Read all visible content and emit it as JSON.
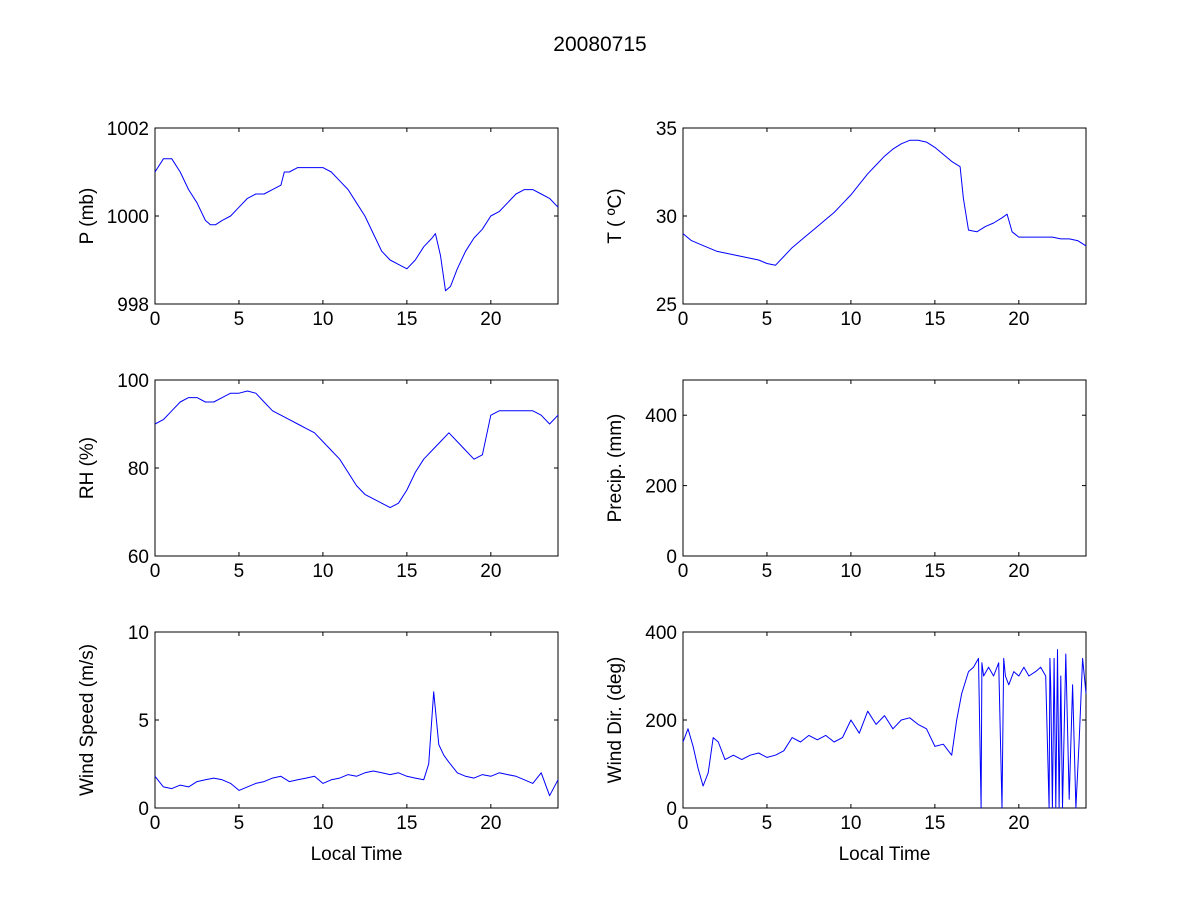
{
  "figure": {
    "title": "20080715",
    "line_color": "#0000ff",
    "background": "#ffffff"
  },
  "chart_data": [
    {
      "type": "line",
      "panel": "top-left",
      "title": "",
      "xlabel": "",
      "ylabel": "P (mb)",
      "xlim": [
        0,
        24
      ],
      "ylim": [
        998,
        1002
      ],
      "xticks": [
        0,
        5,
        10,
        15,
        20
      ],
      "yticks": [
        998,
        1000,
        1002
      ],
      "grid": false,
      "legend": "none",
      "series": [
        {
          "x": [
            0,
            0.5,
            1,
            1.5,
            2,
            2.5,
            3,
            3.3,
            3.6,
            4,
            4.5,
            5,
            5.5,
            6,
            6.5,
            7,
            7.5,
            7.7,
            8,
            8.5,
            9,
            9.5,
            10,
            10.5,
            11,
            11.5,
            12,
            12.5,
            13,
            13.5,
            14,
            14.5,
            15,
            15.5,
            16,
            16.5,
            16.7,
            17,
            17.3,
            17.6,
            18,
            18.5,
            19,
            19.5,
            20,
            20.5,
            21,
            21.5,
            22,
            22.5,
            23,
            23.5,
            24
          ],
          "y": [
            1001,
            1001.3,
            1001.3,
            1001,
            1000.6,
            1000.3,
            999.9,
            999.8,
            999.8,
            999.9,
            1000,
            1000.2,
            1000.4,
            1000.5,
            1000.5,
            1000.6,
            1000.7,
            1001,
            1001,
            1001.1,
            1001.1,
            1001.1,
            1001.1,
            1001,
            1000.8,
            1000.6,
            1000.3,
            1000,
            999.6,
            999.2,
            999,
            998.9,
            998.8,
            999,
            999.3,
            999.5,
            999.6,
            999.1,
            998.3,
            998.4,
            998.8,
            999.2,
            999.5,
            999.7,
            1000,
            1000.1,
            1000.3,
            1000.5,
            1000.6,
            1000.6,
            1000.5,
            1000.4,
            1000.2
          ]
        }
      ]
    },
    {
      "type": "line",
      "panel": "top-right",
      "title": "",
      "xlabel": "",
      "ylabel": "T ( ºC)",
      "xlim": [
        0,
        24
      ],
      "ylim": [
        25,
        35
      ],
      "xticks": [
        0,
        5,
        10,
        15,
        20
      ],
      "yticks": [
        25,
        30,
        35
      ],
      "grid": false,
      "legend": "none",
      "series": [
        {
          "x": [
            0,
            0.5,
            1,
            1.5,
            2,
            2.5,
            3,
            3.5,
            4,
            4.5,
            5,
            5.5,
            6,
            6.5,
            7,
            7.5,
            8,
            8.5,
            9,
            9.5,
            10,
            10.5,
            11,
            11.5,
            12,
            12.5,
            13,
            13.5,
            14,
            14.5,
            15,
            15.5,
            16,
            16.5,
            16.7,
            17,
            17.5,
            18,
            18.5,
            19,
            19.3,
            19.6,
            20,
            20.5,
            21,
            21.5,
            22,
            22.5,
            23,
            23.5,
            24
          ],
          "y": [
            29,
            28.6,
            28.4,
            28.2,
            28,
            27.9,
            27.8,
            27.7,
            27.6,
            27.5,
            27.3,
            27.2,
            27.7,
            28.2,
            28.6,
            29,
            29.4,
            29.8,
            30.2,
            30.7,
            31.2,
            31.8,
            32.4,
            32.9,
            33.4,
            33.8,
            34.1,
            34.3,
            34.3,
            34.2,
            33.9,
            33.5,
            33.1,
            32.8,
            31,
            29.2,
            29.1,
            29.4,
            29.6,
            29.9,
            30.1,
            29.1,
            28.8,
            28.8,
            28.8,
            28.8,
            28.8,
            28.7,
            28.7,
            28.6,
            28.3
          ]
        }
      ]
    },
    {
      "type": "line",
      "panel": "middle-left",
      "title": "",
      "xlabel": "",
      "ylabel": "RH (%)",
      "xlim": [
        0,
        24
      ],
      "ylim": [
        60,
        100
      ],
      "xticks": [
        0,
        5,
        10,
        15,
        20
      ],
      "yticks": [
        60,
        80,
        100
      ],
      "grid": false,
      "legend": "none",
      "series": [
        {
          "x": [
            0,
            0.5,
            1,
            1.5,
            2,
            2.5,
            3,
            3.5,
            4,
            4.5,
            5,
            5.5,
            6,
            6.5,
            7,
            7.5,
            8,
            8.5,
            9,
            9.5,
            10,
            10.5,
            11,
            11.5,
            12,
            12.5,
            13,
            13.5,
            14,
            14.5,
            15,
            15.5,
            16,
            16.5,
            17,
            17.5,
            18,
            18.5,
            19,
            19.5,
            20,
            20.5,
            21,
            21.5,
            22,
            22.5,
            23,
            23.5,
            24
          ],
          "y": [
            90,
            91,
            93,
            95,
            96,
            96,
            95,
            95,
            96,
            97,
            97,
            97.5,
            97,
            95,
            93,
            92,
            91,
            90,
            89,
            88,
            86,
            84,
            82,
            79,
            76,
            74,
            73,
            72,
            71,
            72,
            75,
            79,
            82,
            84,
            86,
            88,
            86,
            84,
            82,
            83,
            92,
            93,
            93,
            93,
            93,
            93,
            92,
            90,
            92
          ]
        }
      ]
    },
    {
      "type": "line",
      "panel": "middle-right",
      "title": "",
      "xlabel": "",
      "ylabel": "Precip. (mm)",
      "xlim": [
        0,
        24
      ],
      "ylim": [
        0,
        500
      ],
      "xticks": [
        0,
        5,
        10,
        15,
        20
      ],
      "yticks": [
        0,
        200,
        400
      ],
      "grid": false,
      "legend": "none",
      "series": [
        {
          "x": [],
          "y": []
        }
      ]
    },
    {
      "type": "line",
      "panel": "bottom-left",
      "title": "",
      "xlabel": "Local Time",
      "ylabel": "Wind Speed (m/s)",
      "xlim": [
        0,
        24
      ],
      "ylim": [
        0,
        10
      ],
      "xticks": [
        0,
        5,
        10,
        15,
        20
      ],
      "yticks": [
        0,
        5,
        10
      ],
      "grid": false,
      "legend": "none",
      "series": [
        {
          "x": [
            0,
            0.5,
            1,
            1.5,
            2,
            2.5,
            3,
            3.5,
            4,
            4.5,
            5,
            5.5,
            6,
            6.5,
            7,
            7.5,
            8,
            8.5,
            9,
            9.5,
            10,
            10.5,
            11,
            11.5,
            12,
            12.5,
            13,
            13.5,
            14,
            14.5,
            15,
            15.5,
            16,
            16.3,
            16.6,
            16.9,
            17.2,
            17.5,
            18,
            18.5,
            19,
            19.5,
            20,
            20.5,
            21,
            21.5,
            22,
            22.5,
            23,
            23.5,
            24
          ],
          "y": [
            1.8,
            1.2,
            1.1,
            1.3,
            1.2,
            1.5,
            1.6,
            1.7,
            1.6,
            1.4,
            1.0,
            1.2,
            1.4,
            1.5,
            1.7,
            1.8,
            1.5,
            1.6,
            1.7,
            1.8,
            1.4,
            1.6,
            1.7,
            1.9,
            1.8,
            2.0,
            2.1,
            2.0,
            1.9,
            2.0,
            1.8,
            1.7,
            1.6,
            2.5,
            6.6,
            3.6,
            3.0,
            2.6,
            2.0,
            1.8,
            1.7,
            1.9,
            1.8,
            2.0,
            1.9,
            1.8,
            1.6,
            1.4,
            2.0,
            0.7,
            1.6
          ]
        }
      ]
    },
    {
      "type": "line",
      "panel": "bottom-right",
      "title": "",
      "xlabel": "Local Time",
      "ylabel": "Wind Dir. (deg)",
      "xlim": [
        0,
        24
      ],
      "ylim": [
        0,
        400
      ],
      "xticks": [
        0,
        5,
        10,
        15,
        20
      ],
      "yticks": [
        0,
        200,
        400
      ],
      "grid": false,
      "legend": "none",
      "series": [
        {
          "x": [
            0,
            0.3,
            0.6,
            0.9,
            1.2,
            1.5,
            1.8,
            2.1,
            2.5,
            3,
            3.5,
            4,
            4.5,
            5,
            5.5,
            6,
            6.5,
            7,
            7.5,
            8,
            8.5,
            9,
            9.5,
            10,
            10.5,
            11,
            11.5,
            12,
            12.5,
            13,
            13.5,
            14,
            14.5,
            15,
            15.5,
            16,
            16.3,
            16.6,
            17,
            17.3,
            17.6,
            17.75,
            17.8,
            17.9,
            18.2,
            18.5,
            18.8,
            19,
            19.1,
            19.2,
            19.4,
            19.7,
            20,
            20.3,
            20.6,
            21,
            21.3,
            21.6,
            21.8,
            21.85,
            21.9,
            22,
            22.1,
            22.2,
            22.3,
            22.4,
            22.5,
            22.6,
            22.8,
            23.0,
            23.2,
            23.4,
            23.6,
            23.8,
            24
          ],
          "y": [
            150,
            180,
            140,
            90,
            50,
            80,
            160,
            150,
            110,
            120,
            110,
            120,
            125,
            115,
            120,
            130,
            160,
            150,
            165,
            155,
            165,
            150,
            160,
            200,
            170,
            220,
            190,
            210,
            180,
            200,
            205,
            190,
            180,
            140,
            145,
            120,
            200,
            260,
            310,
            320,
            340,
            0,
            330,
            300,
            320,
            300,
            330,
            0,
            340,
            300,
            280,
            310,
            300,
            320,
            300,
            310,
            320,
            300,
            0,
            340,
            280,
            0,
            340,
            0,
            360,
            0,
            300,
            0,
            350,
            20,
            280,
            0,
            160,
            340,
            260
          ]
        }
      ]
    }
  ]
}
